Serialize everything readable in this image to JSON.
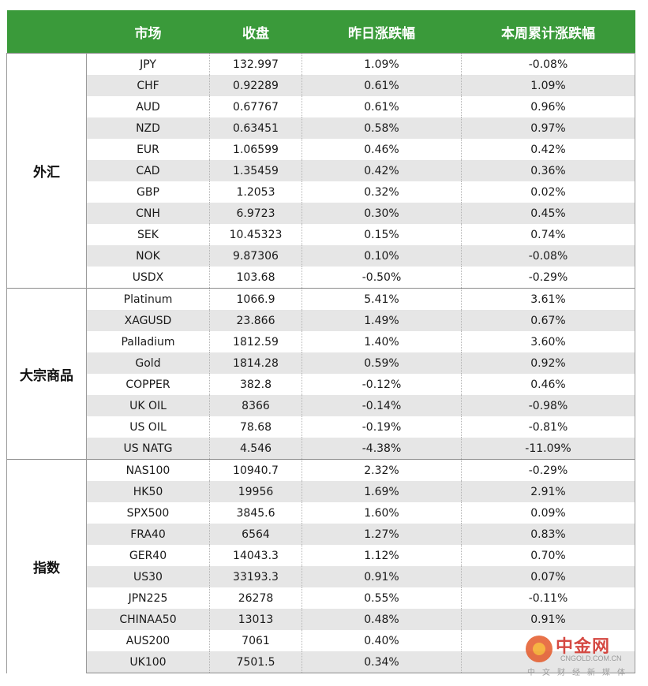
{
  "header": {
    "market": "市场",
    "close": "收盘",
    "day_change": "昨日涨跌幅",
    "week_change": "本周累计涨跌幅"
  },
  "groups": [
    {
      "name": "外汇",
      "rows": [
        {
          "market": "JPY",
          "close": "132.997",
          "day": "1.09%",
          "week": "-0.08%"
        },
        {
          "market": "CHF",
          "close": "0.92289",
          "day": "0.61%",
          "week": "1.09%"
        },
        {
          "market": "AUD",
          "close": "0.67767",
          "day": "0.61%",
          "week": "0.96%"
        },
        {
          "market": "NZD",
          "close": "0.63451",
          "day": "0.58%",
          "week": "0.97%"
        },
        {
          "market": "EUR",
          "close": "1.06599",
          "day": "0.46%",
          "week": "0.42%"
        },
        {
          "market": "CAD",
          "close": "1.35459",
          "day": "0.42%",
          "week": "0.36%"
        },
        {
          "market": "GBP",
          "close": "1.2053",
          "day": "0.32%",
          "week": "0.02%"
        },
        {
          "market": "CNH",
          "close": "6.9723",
          "day": "0.30%",
          "week": "0.45%"
        },
        {
          "market": "SEK",
          "close": "10.45323",
          "day": "0.15%",
          "week": "0.74%"
        },
        {
          "market": "NOK",
          "close": "9.87306",
          "day": "0.10%",
          "week": "-0.08%"
        },
        {
          "market": "USDX",
          "close": "103.68",
          "day": "-0.50%",
          "week": "-0.29%"
        }
      ]
    },
    {
      "name": "大宗商品",
      "rows": [
        {
          "market": "Platinum",
          "close": "1066.9",
          "day": "5.41%",
          "week": "3.61%"
        },
        {
          "market": "XAGUSD",
          "close": "23.866",
          "day": "1.49%",
          "week": "0.67%"
        },
        {
          "market": "Palladium",
          "close": "1812.59",
          "day": "1.40%",
          "week": "3.60%"
        },
        {
          "market": "Gold",
          "close": "1814.28",
          "day": "0.59%",
          "week": "0.92%"
        },
        {
          "market": "COPPER",
          "close": "382.8",
          "day": "-0.12%",
          "week": "0.46%"
        },
        {
          "market": "UK OIL",
          "close": "8366",
          "day": "-0.14%",
          "week": "-0.98%"
        },
        {
          "market": "US OIL",
          "close": "78.68",
          "day": "-0.19%",
          "week": "-0.81%"
        },
        {
          "market": "US NATG",
          "close": "4.546",
          "day": "-4.38%",
          "week": "-11.09%"
        }
      ]
    },
    {
      "name": "指数",
      "rows": [
        {
          "market": "NAS100",
          "close": "10940.7",
          "day": "2.32%",
          "week": "-0.29%"
        },
        {
          "market": "HK50",
          "close": "19956",
          "day": "1.69%",
          "week": "2.91%"
        },
        {
          "market": "SPX500",
          "close": "3845.6",
          "day": "1.60%",
          "week": "0.09%"
        },
        {
          "market": "FRA40",
          "close": "6564",
          "day": "1.27%",
          "week": "0.83%"
        },
        {
          "market": "GER40",
          "close": "14043.3",
          "day": "1.12%",
          "week": "0.70%"
        },
        {
          "market": "US30",
          "close": "33193.3",
          "day": "0.91%",
          "week": "0.07%"
        },
        {
          "market": "JPN225",
          "close": "26278",
          "day": "0.55%",
          "week": "-0.11%"
        },
        {
          "market": "CHINAA50",
          "close": "13013",
          "day": "0.48%",
          "week": "0.91%"
        },
        {
          "market": "AUS200",
          "close": "7061",
          "day": "0.40%",
          "week": ""
        },
        {
          "market": "UK100",
          "close": "7501.5",
          "day": "0.34%",
          "week": ""
        }
      ]
    }
  ],
  "watermark": {
    "name": "中金网",
    "url": "CNGOLD.COM.CN",
    "tagline": "中文财经新媒体"
  },
  "colors": {
    "header_bg": "#3a9a3a",
    "positive": "#e8282c",
    "negative": "#3a5fa8",
    "stripe": "#e6e6e6"
  }
}
